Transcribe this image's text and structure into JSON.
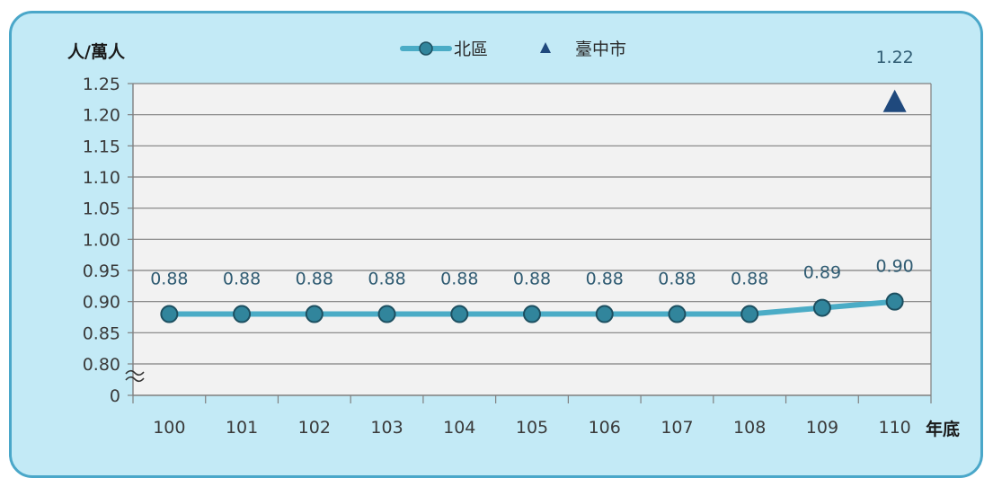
{
  "chart_data": {
    "type": "line",
    "ylabel": "人/萬人",
    "xlabel": "年底",
    "categories": [
      "100",
      "101",
      "102",
      "103",
      "104",
      "105",
      "106",
      "107",
      "108",
      "109",
      "110"
    ],
    "yticks": [
      "0",
      "0.80",
      "0.85",
      "0.90",
      "0.95",
      "1.00",
      "1.05",
      "1.10",
      "1.15",
      "1.20",
      "1.25"
    ],
    "ylim": [
      0.8,
      1.25
    ],
    "axis_break": true,
    "grid": true,
    "legend_position": "top-center",
    "series": [
      {
        "name": "北區",
        "marker": "circle",
        "color": "#4bacc6",
        "marker_color": "#31859c",
        "values": [
          0.88,
          0.88,
          0.88,
          0.88,
          0.88,
          0.88,
          0.88,
          0.88,
          0.88,
          0.89,
          0.9
        ],
        "labels": [
          "0.88",
          "0.88",
          "0.88",
          "0.88",
          "0.88",
          "0.88",
          "0.88",
          "0.88",
          "0.88",
          "0.89",
          "0.90"
        ]
      },
      {
        "name": "臺中市",
        "marker": "triangle",
        "color": "#1f497d",
        "points": [
          {
            "x": "110",
            "y": 1.22,
            "label": "1.22"
          }
        ]
      }
    ]
  }
}
